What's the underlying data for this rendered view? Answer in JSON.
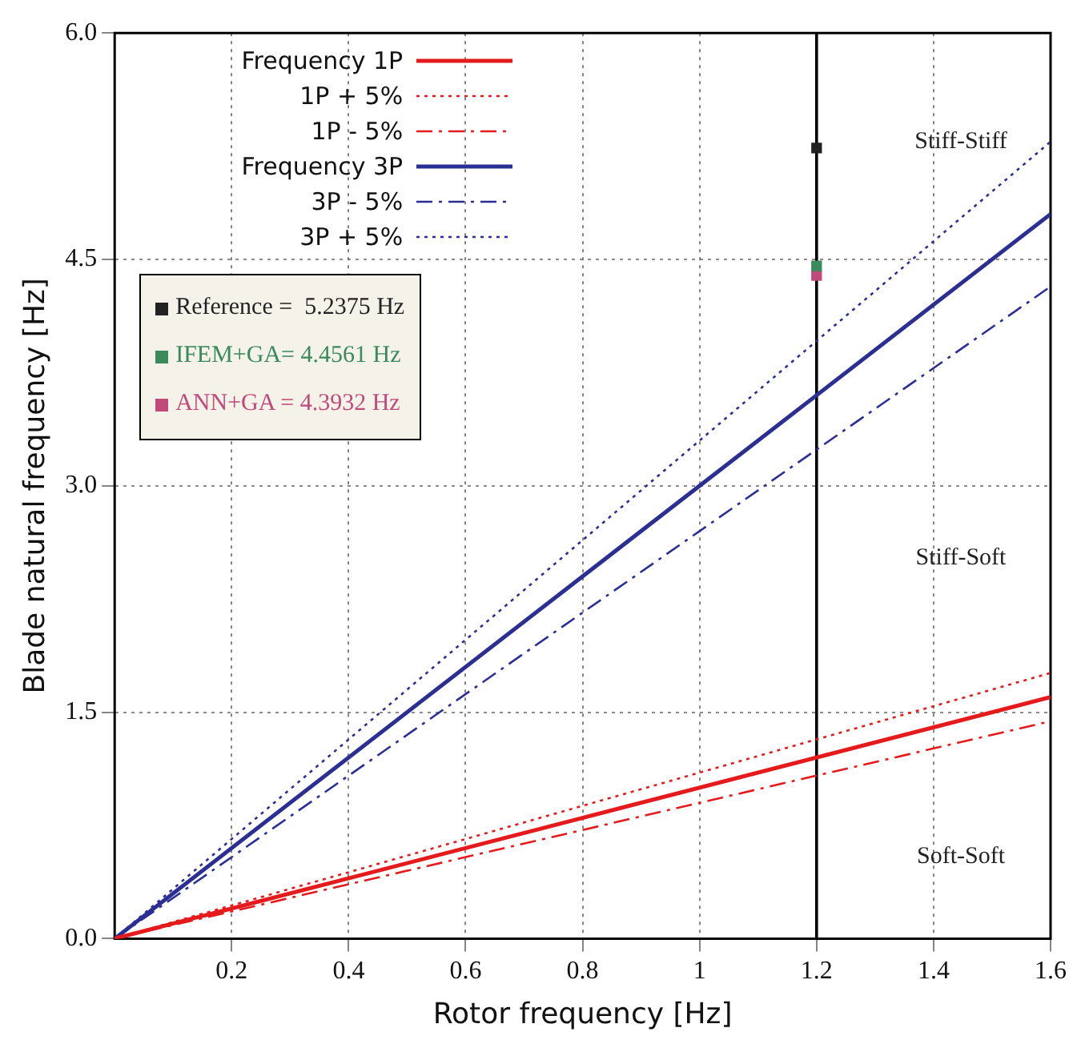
{
  "chart_data": {
    "type": "line",
    "xlabel": "Rotor frequency [Hz]",
    "ylabel": "Blade natural frequency [Hz]",
    "xlim": [
      0,
      1.6
    ],
    "xticks": [
      0.2,
      0.4,
      0.6,
      0.8,
      1,
      1.2,
      1.4,
      1.6
    ],
    "ylim": [
      0,
      6
    ],
    "yticks": [
      {
        "value": 0,
        "label": "0.0"
      },
      {
        "value": 1.5,
        "label": "1.5"
      },
      {
        "value": 3,
        "label": "3.0"
      },
      {
        "value": 4.5,
        "label": "4.5"
      },
      {
        "value": 6,
        "label": "6.0"
      }
    ],
    "grid": true,
    "legend": "top left",
    "marker": "none",
    "series": [
      {
        "name": "Frequency 1P",
        "color": "#e41a1c",
        "x": [
          0,
          1.6
        ],
        "values": [
          0,
          1.6
        ],
        "line_style": "solid"
      },
      {
        "name": "1P + 5%",
        "color": "#e41a1c",
        "x": [
          0,
          1.6
        ],
        "values": [
          0,
          1.76
        ],
        "line_style": "dotted"
      },
      {
        "name": "1P - 5%",
        "color": "#e41a1c",
        "x": [
          0,
          1.6
        ],
        "values": [
          0,
          1.44
        ],
        "line_style": "dashed"
      },
      {
        "name": "Frequency 3P",
        "color": "#2b2f94",
        "x": [
          0,
          1.6
        ],
        "values": [
          0,
          4.8
        ],
        "line_style": "solid"
      },
      {
        "name": "3P - 5%",
        "color": "#2b2f94",
        "x": [
          0,
          1.6
        ],
        "values": [
          0,
          4.32
        ],
        "line_style": "dashed"
      },
      {
        "name": "3P + 5%",
        "color": "#2b2f94",
        "x": [
          0,
          1.6
        ],
        "values": [
          0,
          5.28
        ],
        "line_style": "dotted"
      },
      {
        "name": "Reference =  5.2375 Hz",
        "type": "scatter",
        "marker": "square",
        "color": "#222222",
        "x": [
          1.2
        ],
        "values": [
          5.2375
        ]
      },
      {
        "name": "IFEM+GA= 4.4561 Hz",
        "type": "scatter",
        "marker": "square",
        "color": "#3a8a5c",
        "x": [
          1.2
        ],
        "values": [
          4.4561
        ]
      },
      {
        "name": "ANN+GA = 4.3932 Hz",
        "type": "scatter",
        "marker": "square",
        "color": "#c04a7a",
        "x": [
          1.2
        ],
        "values": [
          4.3932
        ]
      }
    ],
    "ref_lines": [
      {
        "axis": "x",
        "value": 1.2,
        "color": "#000000"
      }
    ],
    "annotations": [
      "Stiff-Stiff",
      "Stiff-Soft",
      "Soft-Soft"
    ]
  }
}
